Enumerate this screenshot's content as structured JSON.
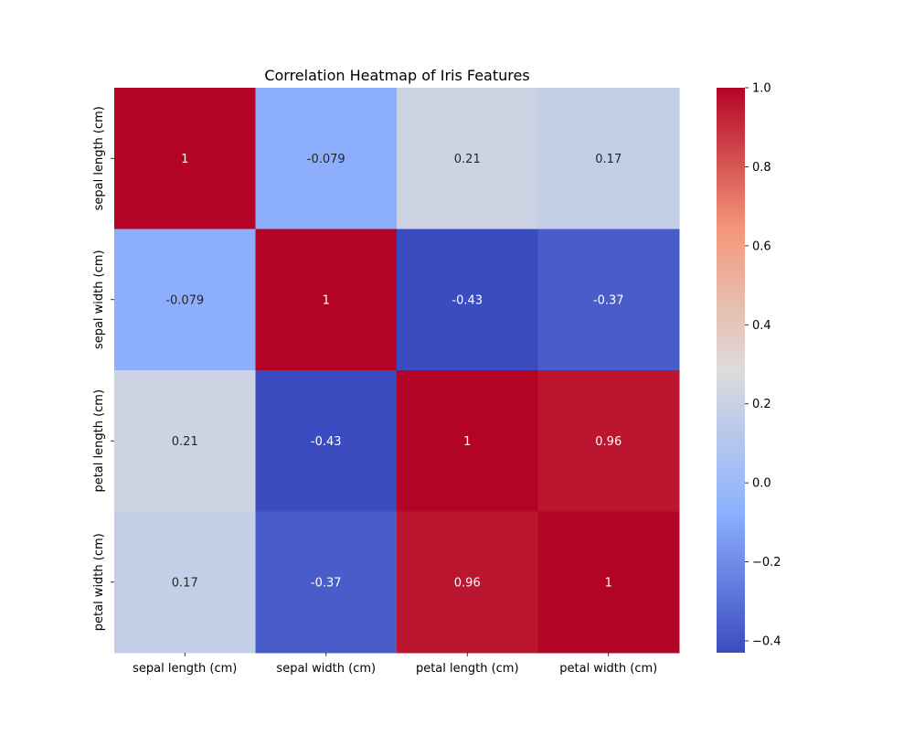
{
  "chart_data": {
    "type": "heatmap",
    "title": "Correlation Heatmap of Iris Features",
    "x_categories": [
      "sepal length (cm)",
      "sepal width (cm)",
      "petal length (cm)",
      "petal width (cm)"
    ],
    "y_categories": [
      "sepal length (cm)",
      "sepal width (cm)",
      "petal length (cm)",
      "petal width (cm)"
    ],
    "values": [
      [
        1,
        -0.079,
        0.21,
        0.17
      ],
      [
        -0.079,
        1,
        -0.43,
        -0.37
      ],
      [
        0.21,
        -0.43,
        1,
        0.96
      ],
      [
        0.17,
        -0.37,
        0.96,
        1
      ]
    ],
    "cell_labels": [
      [
        "1",
        "-0.079",
        "0.21",
        "0.17"
      ],
      [
        "-0.079",
        "1",
        "-0.43",
        "-0.37"
      ],
      [
        "0.21",
        "-0.43",
        "1",
        "0.96"
      ],
      [
        "0.17",
        "-0.37",
        "0.96",
        "1"
      ]
    ],
    "colormap": "coolwarm",
    "colorbar": {
      "range": [
        -0.43,
        1.0
      ],
      "ticks": [
        -0.4,
        -0.2,
        0.0,
        0.2,
        0.4,
        0.6,
        0.8,
        1.0
      ],
      "tick_labels": [
        "−0.4",
        "−0.2",
        "0.0",
        "0.2",
        "0.4",
        "0.6",
        "0.8",
        "1.0"
      ]
    },
    "xlabel": "",
    "ylabel": ""
  }
}
